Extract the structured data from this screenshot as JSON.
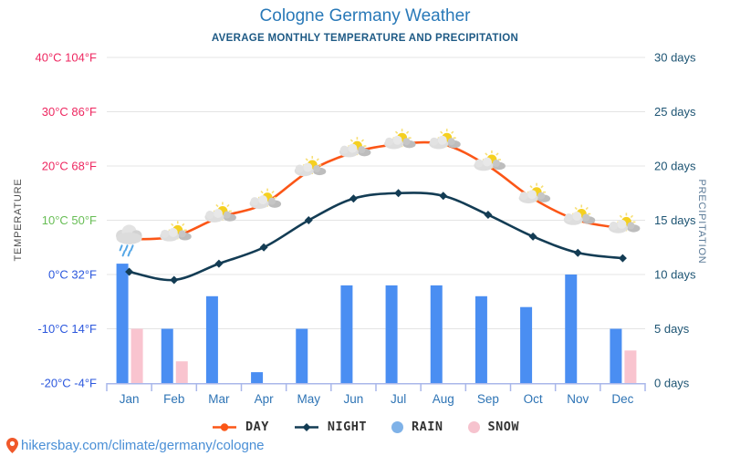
{
  "header": {
    "title": "Cologne Germany Weather",
    "subtitle": "AVERAGE MONTHLY TEMPERATURE AND PRECIPITATION"
  },
  "axes": {
    "left_title": "TEMPERATURE",
    "right_title": "PRECIPITATION",
    "left_ticks": [
      {
        "value": 40,
        "label": "40°C 104°F",
        "color": "#ee2760"
      },
      {
        "value": 30,
        "label": "30°C 86°F",
        "color": "#ee2760"
      },
      {
        "value": 20,
        "label": "20°C 68°F",
        "color": "#ee2760"
      },
      {
        "value": 10,
        "label": "10°C 50°F",
        "color": "#67bd54"
      },
      {
        "value": 0,
        "label": "0°C 32°F",
        "color": "#2b57dd"
      },
      {
        "value": -10,
        "label": "-10°C 14°F",
        "color": "#2b57dd"
      },
      {
        "value": -20,
        "label": "-20°C -4°F",
        "color": "#2b57dd"
      }
    ],
    "right_ticks": [
      {
        "value": 30,
        "label": "30 days"
      },
      {
        "value": 25,
        "label": "25 days"
      },
      {
        "value": 20,
        "label": "20 days"
      },
      {
        "value": 15,
        "label": "15 days"
      },
      {
        "value": 10,
        "label": "10 days"
      },
      {
        "value": 5,
        "label": "5 days"
      },
      {
        "value": 0,
        "label": "0 days"
      }
    ]
  },
  "chart_data": {
    "type": "composite",
    "categories": [
      "Jan",
      "Feb",
      "Mar",
      "Apr",
      "May",
      "Jun",
      "Jul",
      "Aug",
      "Sep",
      "Oct",
      "Nov",
      "Dec"
    ],
    "temp_axis": {
      "min": -20,
      "max": 40,
      "unit": "°C"
    },
    "precip_axis": {
      "min": 0,
      "max": 30,
      "unit": "days"
    },
    "grid": true,
    "legend_position": "bottom",
    "series": [
      {
        "name": "DAY",
        "type": "line",
        "unit": "°C",
        "color": "#fb5617",
        "values": [
          6.5,
          7,
          10.5,
          13,
          19,
          22.5,
          24,
          24,
          20,
          14,
          10,
          8.5
        ],
        "icons": [
          "rain-cloud",
          "sun-cloud",
          "sun-cloud",
          "sun-cloud",
          "sun-cloud",
          "sun-cloud",
          "sun-cloud",
          "sun-cloud",
          "sun-cloud",
          "sun-cloud",
          "sun-cloud",
          "sun-cloud"
        ]
      },
      {
        "name": "NIGHT",
        "type": "line",
        "unit": "°C",
        "color": "#133c54",
        "values": [
          0.5,
          -1,
          2,
          5,
          10,
          14,
          15,
          14.5,
          11,
          7,
          4,
          3
        ]
      },
      {
        "name": "RAIN",
        "type": "bar",
        "unit": "days",
        "color": "#4a8ef2",
        "values": [
          11,
          5,
          8,
          1,
          5,
          9,
          9,
          9,
          8,
          7,
          10,
          5
        ]
      },
      {
        "name": "SNOW",
        "type": "bar",
        "unit": "days",
        "color": "#f9c4cf",
        "values": [
          5,
          2,
          0,
          0,
          0,
          0,
          0,
          0,
          0,
          0,
          0,
          3
        ]
      }
    ]
  },
  "legend": {
    "items": [
      {
        "label": "DAY",
        "marker": "line-dot",
        "color": "#fb5617"
      },
      {
        "label": "NIGHT",
        "marker": "line-diamond",
        "color": "#133c54"
      },
      {
        "label": "RAIN",
        "marker": "dot",
        "color": "#7fb2e8"
      },
      {
        "label": "SNOW",
        "marker": "dot",
        "color": "#f6c3ce"
      }
    ]
  },
  "watermark": {
    "text": "hikersbay.com/climate/germany/cologne"
  },
  "colors": {
    "background": "#ffffff",
    "title": "#2979b8",
    "subtitle": "#1e5a85",
    "month_label": "#2e74b5",
    "days_label": "#1d5473",
    "temp_axis_title": "#4d4d4d",
    "precip_axis_title": "#5b7a97",
    "grid": "#e4e4e4",
    "axis_line": "#a9b7ea",
    "watermark": "#4a8fd6",
    "pin": "#f0582a"
  }
}
